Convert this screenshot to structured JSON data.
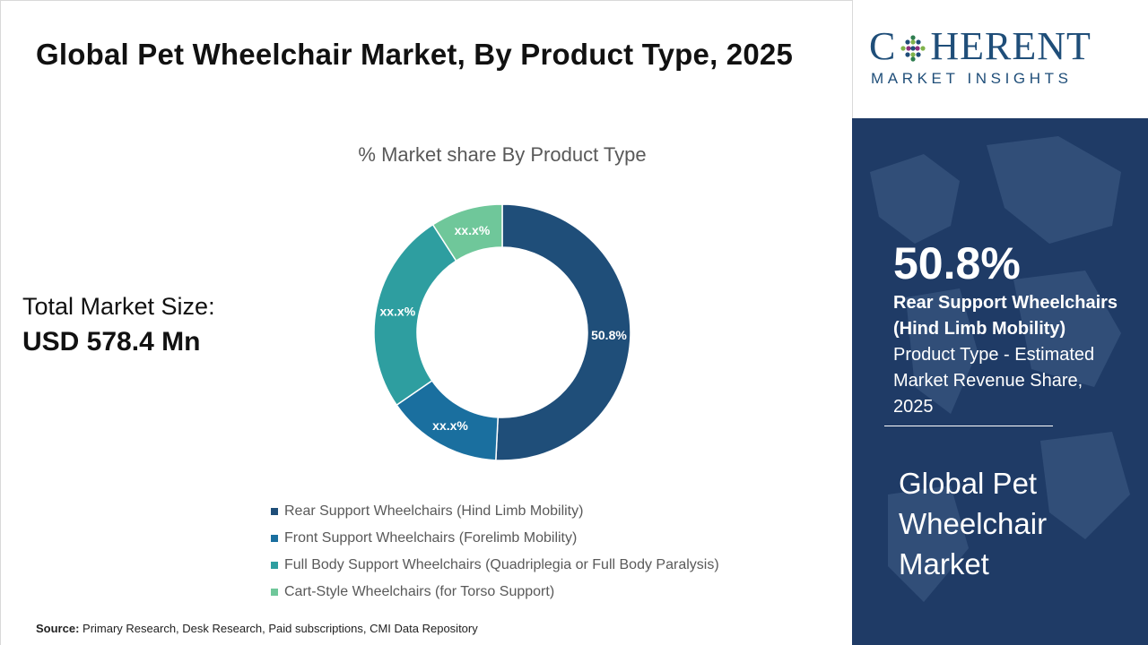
{
  "title": "Global Pet Wheelchair Market, By Product Type, 2025",
  "market_size": {
    "label": "Total Market Size:",
    "value": "USD 578.4 Mn"
  },
  "source": {
    "label": "Source:",
    "text": "Primary Research, Desk Research, Paid subscriptions, CMI Data Repository"
  },
  "logo": {
    "main_prefix": "C",
    "main_suffix": "HERENT",
    "sub": "MARKET INSIGHTS"
  },
  "highlight": {
    "value": "50.8%",
    "desc_bold": "Rear Support Wheelchairs (Hind Limb Mobility)",
    "desc_rest": " Product Type - Estimated Market Revenue Share, 2025"
  },
  "panel_title": "Global Pet Wheelchair Market",
  "colors": {
    "rear": "#1f4e79",
    "front": "#1a6f9f",
    "full_body": "#2e9ea0",
    "cart": "#6fc79a",
    "panel_bg": "#1f3b66"
  },
  "chart_data": {
    "type": "pie",
    "subtitle": "% Market share By Product Type",
    "categories": [
      "Rear Support Wheelchairs (Hind Limb Mobility)",
      "Front Support Wheelchairs (Forelimb Mobility)",
      "Full Body Support Wheelchairs (Quadriplegia or Full Body Paralysis)",
      "Cart-Style Wheelchairs (for Torso Support)"
    ],
    "values": [
      50.8,
      14.6,
      25.5,
      9.1
    ],
    "labels": [
      "50.8%",
      "xx.x%",
      "xx.x%",
      "xx.x%"
    ],
    "colors": [
      "#1f4e79",
      "#1a6f9f",
      "#2e9ea0",
      "#6fc79a"
    ],
    "donut": true,
    "legend_position": "bottom"
  }
}
